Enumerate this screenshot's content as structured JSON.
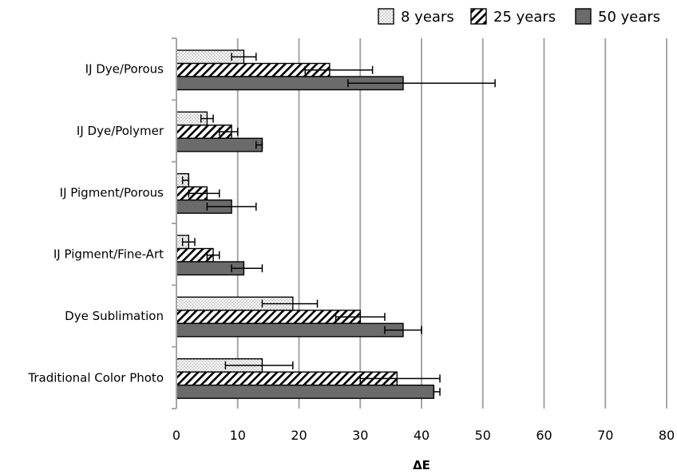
{
  "chart_data": {
    "type": "bar",
    "orientation": "horizontal",
    "categories": [
      "IJ Dye/Porous",
      "IJ Dye/Polymer",
      "IJ Pigment/Porous",
      "IJ Pigment/Fine-Art",
      "Dye Sublimation",
      "Traditional Color Photo"
    ],
    "series": [
      {
        "name": "8 years",
        "pattern": "dotted",
        "values": [
          11,
          5,
          2,
          2,
          19,
          14
        ],
        "error_low": [
          9,
          4,
          1,
          1,
          14,
          8
        ],
        "error_high": [
          13,
          6,
          2,
          3,
          23,
          19
        ]
      },
      {
        "name": "25 years",
        "pattern": "diagonal-hatch",
        "values": [
          25,
          9,
          5,
          6,
          30,
          36
        ],
        "error_low": [
          21,
          7,
          2,
          5,
          26,
          30
        ],
        "error_high": [
          32,
          10,
          7,
          7,
          34,
          43
        ]
      },
      {
        "name": "50 years",
        "pattern": "solid",
        "color": "#6b6b6b",
        "values": [
          37,
          14,
          9,
          11,
          37,
          42
        ],
        "error_low": [
          28,
          13,
          5,
          9,
          34,
          42
        ],
        "error_high": [
          52,
          14,
          13,
          14,
          40,
          43
        ]
      }
    ],
    "x_ticks": [
      "0",
      "10",
      "20",
      "30",
      "40",
      "50",
      "60",
      "70",
      "80"
    ],
    "xlim": [
      0,
      80
    ],
    "xlabel": "ΔE",
    "ylabel": "",
    "title": "",
    "grid": "vertical",
    "legend_position": "top-right"
  }
}
